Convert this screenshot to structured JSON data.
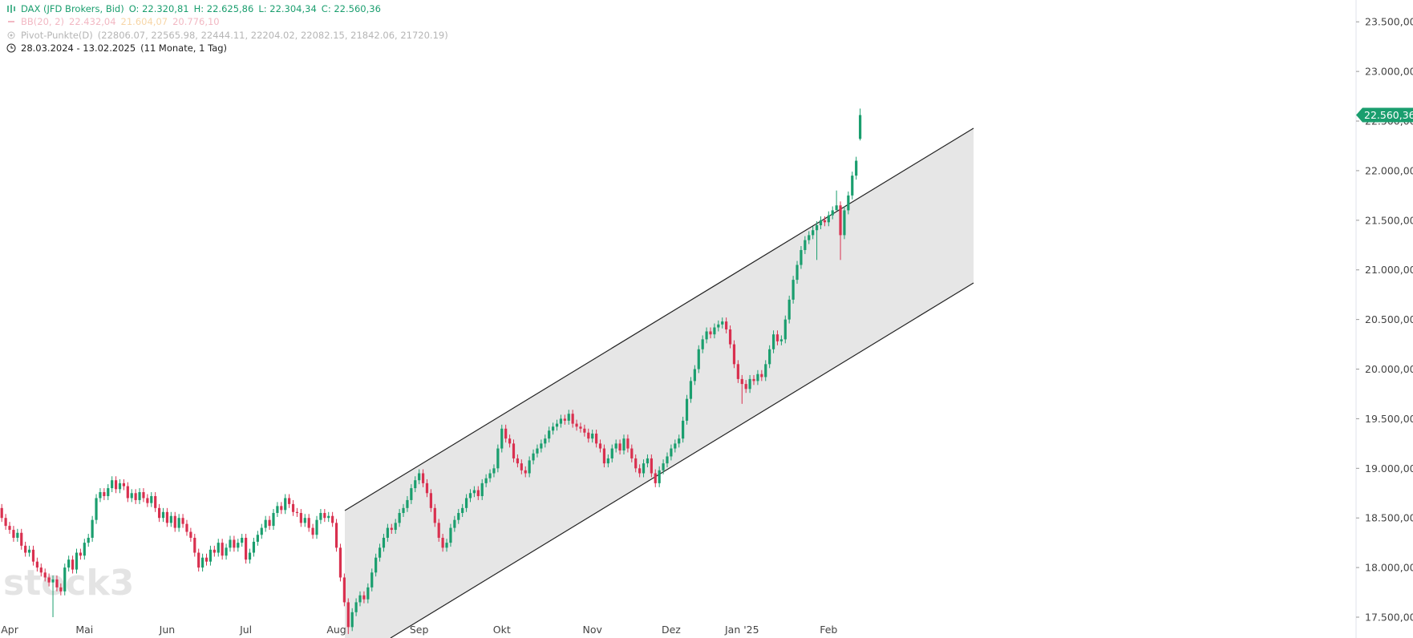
{
  "chart_data": {
    "type": "candlestick",
    "title": "DAX (JFD Brokers, Bid)",
    "ohlc_legend": [
      "O: 22.320,81",
      "H: 22.625,86",
      "L: 22.304,34",
      "C: 22.560,36"
    ],
    "indicators": [
      {
        "name": "BB(20, 2)",
        "values": [
          "22.432,04",
          "21.604,07",
          "20.776,10"
        ]
      },
      {
        "name": "Pivot-Punkte(D)",
        "values": [
          "(22806.07, 22565.98, 22444.11, 22204.02, 22082.15, 21842.06, 21720.19)"
        ]
      }
    ],
    "date_range": "28.03.2024 - 13.02.2025",
    "duration": "(11 Monate, 1 Tag)",
    "watermark": "stock3",
    "last_price_label": "22.560,36",
    "up_color": "#1a9e6e",
    "down_color": "#d9304f",
    "ylim": [
      17290,
      23720
    ],
    "yticks": [
      {
        "value": 17500,
        "label": "17.500,00"
      },
      {
        "value": 18000,
        "label": "18.000,00"
      },
      {
        "value": 18500,
        "label": "18.500,00"
      },
      {
        "value": 19000,
        "label": "19.000,00"
      },
      {
        "value": 19500,
        "label": "19.500,00"
      },
      {
        "value": 20000,
        "label": "20.000,00"
      },
      {
        "value": 20500,
        "label": "20.500,00"
      },
      {
        "value": 21000,
        "label": "21.000,00"
      },
      {
        "value": 21500,
        "label": "21.500,00"
      },
      {
        "value": 22000,
        "label": "22.000,00"
      },
      {
        "value": 22500,
        "label": "22.500,00"
      },
      {
        "value": 23000,
        "label": "23.000,00"
      },
      {
        "value": 23500,
        "label": "23.500,00"
      }
    ],
    "categories": [
      null,
      null,
      "Apr",
      null,
      null,
      null,
      null,
      null,
      null,
      null,
      null,
      null,
      null,
      null,
      null,
      null,
      null,
      null,
      null,
      null,
      null,
      "Mai",
      null,
      null,
      null,
      null,
      null,
      null,
      null,
      null,
      null,
      null,
      null,
      null,
      null,
      null,
      null,
      null,
      null,
      null,
      null,
      null,
      "Jun",
      null,
      null,
      null,
      null,
      null,
      null,
      null,
      null,
      null,
      null,
      null,
      null,
      null,
      null,
      null,
      null,
      null,
      null,
      null,
      "Jul",
      null,
      null,
      null,
      null,
      null,
      null,
      null,
      null,
      null,
      null,
      null,
      null,
      null,
      null,
      null,
      null,
      null,
      null,
      null,
      null,
      null,
      null,
      "Aug",
      null,
      null,
      null,
      null,
      null,
      null,
      null,
      null,
      null,
      null,
      null,
      null,
      null,
      null,
      null,
      null,
      null,
      null,
      null,
      null,
      "Sep",
      null,
      null,
      null,
      null,
      null,
      null,
      null,
      null,
      null,
      null,
      null,
      null,
      null,
      null,
      null,
      null,
      null,
      null,
      null,
      null,
      "Okt",
      null,
      null,
      null,
      null,
      null,
      null,
      null,
      null,
      null,
      null,
      null,
      null,
      null,
      null,
      null,
      null,
      null,
      null,
      null,
      null,
      null,
      null,
      "Nov",
      null,
      null,
      null,
      null,
      null,
      null,
      null,
      null,
      null,
      null,
      null,
      null,
      null,
      null,
      null,
      null,
      null,
      null,
      null,
      "Dez",
      null,
      null,
      null,
      null,
      null,
      null,
      null,
      null,
      null,
      null,
      null,
      null,
      null,
      null,
      null,
      null,
      null,
      "Jan '25",
      null,
      null,
      null,
      null,
      null,
      null,
      null,
      null,
      null,
      null,
      null,
      null,
      null,
      null,
      null,
      null,
      null,
      null,
      null,
      null,
      null,
      "Feb",
      null,
      null,
      null,
      null,
      null,
      null,
      null,
      null
    ],
    "open": [
      18600,
      18500,
      18420,
      18380,
      18300,
      18350,
      18220,
      18150,
      18180,
      18060,
      18000,
      17950,
      17900,
      17850,
      17880,
      17800,
      17760,
      18000,
      18080,
      17980,
      18150,
      18120,
      18250,
      18300,
      18480,
      18700,
      18760,
      18720,
      18800,
      18880,
      18790,
      18850,
      18820,
      18700,
      18750,
      18680,
      18760,
      18700,
      18650,
      18720,
      18600,
      18500,
      18560,
      18450,
      18520,
      18400,
      18500,
      18440,
      18360,
      18300,
      18150,
      18000,
      18100,
      18060,
      18180,
      18150,
      18250,
      18120,
      18200,
      18280,
      18200,
      18250,
      18300,
      18080,
      18150,
      18260,
      18330,
      18400,
      18480,
      18420,
      18550,
      18620,
      18580,
      18700,
      18640,
      18560,
      18550,
      18450,
      18500,
      18400,
      18330,
      18480,
      18550,
      18500,
      18520,
      18450,
      18200,
      17900,
      17650,
      17400,
      17550,
      17650,
      17720,
      17680,
      17800,
      17950,
      18100,
      18200,
      18300,
      18400,
      18380,
      18450,
      18550,
      18600,
      18680,
      18800,
      18880,
      18950,
      18850,
      18750,
      18600,
      18450,
      18300,
      18200,
      18250,
      18400,
      18480,
      18550,
      18600,
      18700,
      18750,
      18780,
      18720,
      18850,
      18900,
      18950,
      19000,
      19200,
      19400,
      19300,
      19250,
      19100,
      19050,
      18980,
      18950,
      19080,
      19150,
      19200,
      19250,
      19300,
      19380,
      19420,
      19450,
      19500,
      19480,
      19550,
      19450,
      19420,
      19400,
      19360,
      19300,
      19350,
      19250,
      19200,
      19050,
      19100,
      19200,
      19250,
      19180,
      19300,
      19200,
      19100,
      19000,
      18950,
      19050,
      19100,
      18950,
      18850,
      18980,
      19050,
      19120,
      19200,
      19250,
      19300,
      19480,
      19700,
      19880,
      20000,
      20200,
      20300,
      20380,
      20350,
      20420,
      20450,
      20480,
      20400,
      20250,
      20050,
      19900,
      19850,
      19800,
      19900,
      19880,
      19950,
      19920,
      20050,
      20200,
      20350,
      20280,
      20300,
      20500,
      20700,
      20900,
      21050,
      21200,
      21300,
      21350,
      21400,
      21450,
      21500,
      21480,
      21550,
      21600,
      21650,
      21350,
      21600,
      21750,
      21950,
      22320.81
    ],
    "high": [
      18640,
      18540,
      18460,
      18420,
      18390,
      18390,
      18260,
      18220,
      18220,
      18100,
      18040,
      17990,
      17940,
      17920,
      17920,
      17840,
      18040,
      18120,
      18120,
      18190,
      18190,
      18290,
      18340,
      18520,
      18740,
      18800,
      18800,
      18840,
      18920,
      18920,
      18890,
      18890,
      18860,
      18790,
      18790,
      18800,
      18800,
      18740,
      18760,
      18760,
      18640,
      18600,
      18600,
      18560,
      18560,
      18540,
      18540,
      18480,
      18400,
      18340,
      18190,
      18140,
      18140,
      18220,
      18220,
      18290,
      18290,
      18240,
      18320,
      18320,
      18290,
      18340,
      18340,
      18190,
      18300,
      18370,
      18440,
      18520,
      18520,
      18590,
      18660,
      18660,
      18740,
      18740,
      18680,
      18600,
      18590,
      18540,
      18540,
      18440,
      18520,
      18590,
      18590,
      18560,
      18560,
      18490,
      18240,
      17940,
      17690,
      17590,
      17690,
      17760,
      17760,
      17840,
      17990,
      18140,
      18240,
      18340,
      18440,
      18440,
      18490,
      18590,
      18640,
      18720,
      18840,
      18920,
      18990,
      18990,
      18890,
      18790,
      18640,
      18490,
      18340,
      18290,
      18440,
      18520,
      18590,
      18640,
      18740,
      18790,
      18820,
      18820,
      18890,
      18940,
      18990,
      19040,
      19240,
      19440,
      19440,
      19340,
      19290,
      19140,
      19090,
      19020,
      19120,
      19190,
      19240,
      19290,
      19340,
      19420,
      19460,
      19490,
      19540,
      19540,
      19590,
      19590,
      19490,
      19460,
      19440,
      19400,
      19390,
      19390,
      19290,
      19240,
      19140,
      19240,
      19290,
      19290,
      19340,
      19340,
      19240,
      19140,
      19040,
      19090,
      19140,
      19140,
      18990,
      19020,
      19090,
      19160,
      19240,
      19290,
      19340,
      19520,
      19740,
      19920,
      20040,
      20240,
      20340,
      20420,
      20420,
      20460,
      20490,
      20520,
      20520,
      20440,
      20290,
      20090,
      19940,
      19890,
      19940,
      19940,
      19990,
      19990,
      20090,
      20240,
      20390,
      20390,
      20340,
      20540,
      20740,
      20940,
      21090,
      21240,
      21340,
      21390,
      21440,
      21490,
      21540,
      21540,
      21590,
      21640,
      21800,
      21690,
      21640,
      21790,
      21990,
      22140,
      22625.86
    ],
    "low": [
      18460,
      18380,
      18340,
      18260,
      18260,
      18180,
      18110,
      18110,
      18020,
      17960,
      17910,
      17860,
      17810,
      17500,
      17760,
      17720,
      17720,
      17960,
      17940,
      17940,
      18080,
      18080,
      18210,
      18260,
      18440,
      18660,
      18680,
      18680,
      18760,
      18750,
      18750,
      18780,
      18660,
      18660,
      18640,
      18640,
      18660,
      18610,
      18610,
      18560,
      18460,
      18460,
      18410,
      18410,
      18360,
      18360,
      18400,
      18320,
      18260,
      18110,
      17960,
      17960,
      18020,
      18020,
      18110,
      18110,
      18080,
      18080,
      18160,
      18160,
      18160,
      18210,
      18040,
      18040,
      18110,
      18220,
      18290,
      18360,
      18380,
      18380,
      18510,
      18540,
      18540,
      18600,
      18520,
      18510,
      18410,
      18410,
      18360,
      18290,
      18290,
      18440,
      18460,
      18460,
      18410,
      18160,
      17860,
      17610,
      17330,
      17360,
      17510,
      17610,
      17640,
      17640,
      17760,
      17910,
      18060,
      18160,
      18260,
      18340,
      18340,
      18410,
      18510,
      18560,
      18640,
      18760,
      18840,
      18810,
      18710,
      18560,
      18410,
      18260,
      18160,
      18160,
      18210,
      18360,
      18440,
      18510,
      18560,
      18660,
      18710,
      18680,
      18680,
      18810,
      18860,
      18910,
      18960,
      19160,
      19260,
      19210,
      19060,
      19010,
      18940,
      18910,
      18910,
      19040,
      19110,
      19160,
      19210,
      19260,
      19340,
      19380,
      19410,
      19440,
      19440,
      19410,
      19380,
      19360,
      19320,
      19260,
      19260,
      19210,
      19160,
      19010,
      19010,
      19060,
      19160,
      19140,
      19140,
      19160,
      19060,
      18960,
      18910,
      18910,
      19010,
      18910,
      18810,
      18810,
      18940,
      19010,
      19080,
      19160,
      19210,
      19260,
      19440,
      19660,
      19840,
      19960,
      20160,
      20260,
      20310,
      20310,
      20380,
      20410,
      20360,
      20210,
      20010,
      19860,
      19650,
      19760,
      19760,
      19840,
      19840,
      19880,
      19880,
      20010,
      20160,
      20240,
      20240,
      20260,
      20460,
      20660,
      20860,
      21010,
      21160,
      21260,
      21310,
      21100,
      21410,
      21440,
      21440,
      21510,
      21610,
      21100,
      21310,
      21560,
      21710,
      21910,
      22304.34
    ],
    "close": [
      18500,
      18420,
      18380,
      18300,
      18350,
      18220,
      18150,
      18180,
      18060,
      18000,
      17950,
      17900,
      17850,
      17880,
      17800,
      17760,
      18000,
      18080,
      17980,
      18150,
      18120,
      18250,
      18300,
      18480,
      18700,
      18760,
      18720,
      18800,
      18880,
      18790,
      18850,
      18820,
      18700,
      18750,
      18680,
      18760,
      18700,
      18650,
      18720,
      18600,
      18500,
      18560,
      18450,
      18520,
      18400,
      18500,
      18440,
      18360,
      18300,
      18150,
      18000,
      18100,
      18060,
      18180,
      18150,
      18250,
      18120,
      18200,
      18280,
      18200,
      18250,
      18300,
      18080,
      18150,
      18260,
      18330,
      18400,
      18480,
      18420,
      18550,
      18620,
      18580,
      18700,
      18640,
      18560,
      18550,
      18450,
      18500,
      18400,
      18330,
      18480,
      18550,
      18500,
      18520,
      18450,
      18200,
      17900,
      17650,
      17400,
      17550,
      17650,
      17720,
      17680,
      17800,
      17950,
      18100,
      18200,
      18300,
      18400,
      18380,
      18450,
      18550,
      18600,
      18680,
      18800,
      18880,
      18950,
      18850,
      18750,
      18600,
      18450,
      18300,
      18200,
      18250,
      18400,
      18480,
      18550,
      18600,
      18700,
      18750,
      18780,
      18720,
      18850,
      18900,
      18950,
      19000,
      19200,
      19400,
      19300,
      19250,
      19100,
      19050,
      18980,
      18950,
      19080,
      19150,
      19200,
      19250,
      19300,
      19380,
      19420,
      19450,
      19500,
      19480,
      19550,
      19450,
      19420,
      19400,
      19360,
      19300,
      19350,
      19250,
      19200,
      19050,
      19100,
      19200,
      19250,
      19180,
      19300,
      19200,
      19100,
      19000,
      18950,
      19050,
      19100,
      18950,
      18850,
      18980,
      19050,
      19120,
      19200,
      19250,
      19300,
      19480,
      19700,
      19880,
      20000,
      20200,
      20300,
      20380,
      20350,
      20420,
      20450,
      20480,
      20400,
      20250,
      20050,
      19900,
      19850,
      19800,
      19900,
      19880,
      19950,
      19920,
      20050,
      20200,
      20350,
      20280,
      20300,
      20500,
      20700,
      20900,
      21050,
      21200,
      21300,
      21350,
      21400,
      21450,
      21500,
      21480,
      21550,
      21600,
      21650,
      21350,
      21600,
      21750,
      21950,
      22100,
      22560.36
    ]
  }
}
